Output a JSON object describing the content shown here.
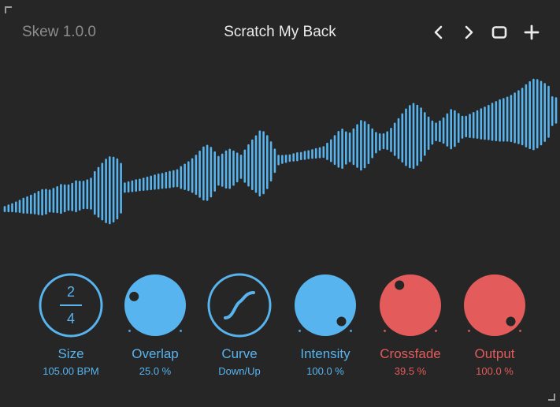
{
  "header": {
    "version": "Skew 1.0.0",
    "preset_name": "Scratch My Back",
    "buttons": {
      "prev_icon": "chevron-left-icon",
      "next_icon": "chevron-right-icon",
      "window_icon": "window-icon",
      "add_icon": "plus-icon"
    }
  },
  "colors": {
    "background": "#262626",
    "accent_blue": "#57b4ee",
    "accent_red": "#e35b5b",
    "text_dim": "#8c8c8c",
    "text_bright": "#ececec"
  },
  "waveform": {
    "description_color": "#57b4ee",
    "amplitudes": [
      0.06,
      0.08,
      0.1,
      0.13,
      0.16,
      0.2,
      0.22,
      0.25,
      0.28,
      0.32,
      0.35,
      0.34,
      0.3,
      0.33,
      0.36,
      0.4,
      0.37,
      0.35,
      0.38,
      0.43,
      0.4,
      0.38,
      0.4,
      0.43,
      0.6,
      0.7,
      0.8,
      0.9,
      0.95,
      0.92,
      0.85,
      0.7,
      0.12,
      0.13,
      0.14,
      0.15,
      0.15,
      0.16,
      0.17,
      0.18,
      0.19,
      0.2,
      0.2,
      0.21,
      0.22,
      0.22,
      0.23,
      0.3,
      0.35,
      0.4,
      0.47,
      0.55,
      0.65,
      0.75,
      0.78,
      0.7,
      0.55,
      0.4,
      0.45,
      0.52,
      0.55,
      0.48,
      0.4,
      0.32,
      0.45,
      0.58,
      0.7,
      0.8,
      0.92,
      0.88,
      0.75,
      0.55,
      0.32,
      0.12,
      0.1,
      0.09,
      0.08,
      0.09,
      0.1,
      0.09,
      0.1,
      0.1,
      0.11,
      0.12,
      0.13,
      0.14,
      0.22,
      0.3,
      0.4,
      0.5,
      0.55,
      0.45,
      0.4,
      0.5,
      0.6,
      0.7,
      0.65,
      0.55,
      0.4,
      0.28,
      0.22,
      0.2,
      0.24,
      0.32,
      0.45,
      0.56,
      0.68,
      0.8,
      0.88,
      0.92,
      0.85,
      0.75,
      0.6,
      0.45,
      0.32,
      0.24,
      0.28,
      0.35,
      0.45,
      0.55,
      0.5,
      0.4,
      0.3,
      0.28,
      0.32,
      0.35,
      0.38,
      0.42,
      0.45,
      0.48,
      0.52,
      0.55,
      0.58,
      0.6,
      0.62,
      0.65,
      0.7,
      0.75,
      0.8,
      0.88,
      0.95,
      1.0,
      0.97,
      0.9,
      0.82,
      0.72,
      0.4,
      0.35
    ]
  },
  "knobs": [
    {
      "id": "size",
      "label": "Size",
      "value": "105.00 BPM",
      "color": "#57b4ee",
      "numerator": "2",
      "denominator": "4",
      "type": "fraction"
    },
    {
      "id": "overlap",
      "label": "Overlap",
      "value": "25.0 %",
      "color": "#57b4ee",
      "level": 0.25,
      "type": "rotary"
    },
    {
      "id": "curve",
      "label": "Curve",
      "value": "Down/Up",
      "color": "#57b4ee",
      "type": "curve"
    },
    {
      "id": "intensity",
      "label": "Intensity",
      "value": "100.0 %",
      "color": "#57b4ee",
      "level": 1.0,
      "type": "rotary"
    },
    {
      "id": "crossfade",
      "label": "Crossfade",
      "value": "39.5 %",
      "color": "#e35b5b",
      "level": 0.395,
      "type": "rotary"
    },
    {
      "id": "output",
      "label": "Output",
      "value": "100.0 %",
      "color": "#e35b5b",
      "level": 1.0,
      "type": "rotary"
    }
  ]
}
